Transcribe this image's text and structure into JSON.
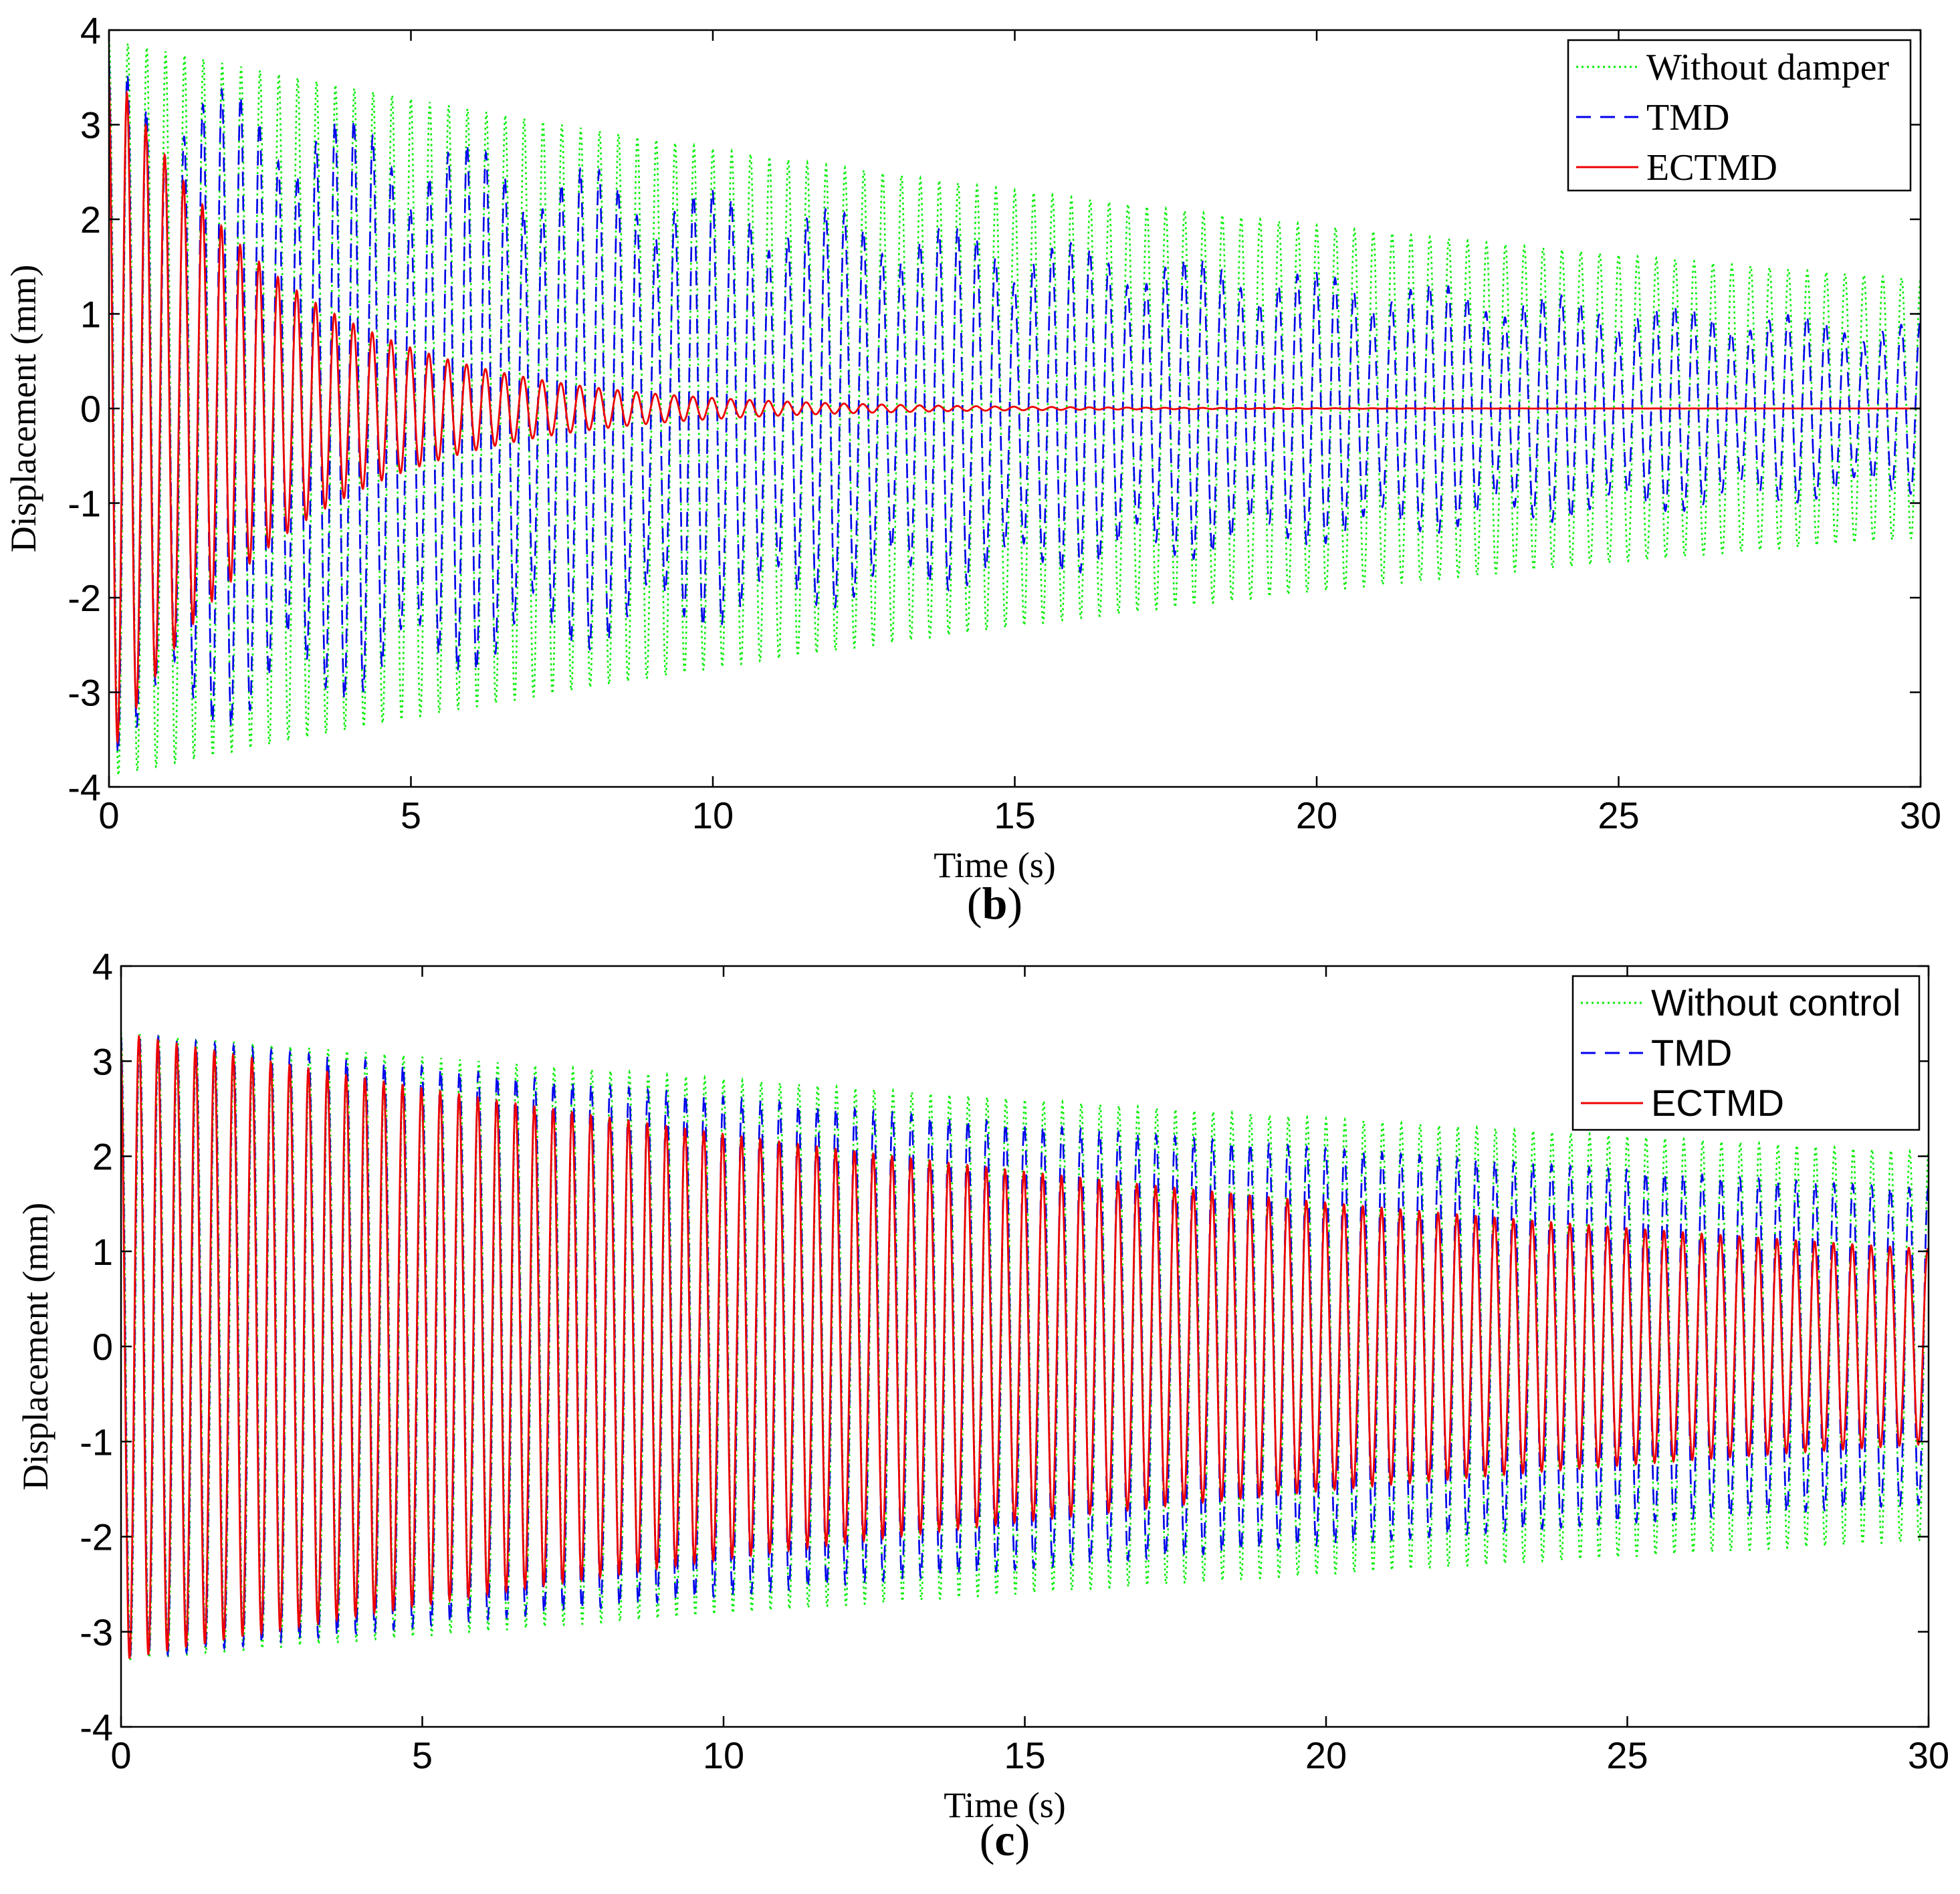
{
  "chart_data": [
    {
      "panel_label": "b",
      "type": "line",
      "title": "",
      "xlabel": "Time (s)",
      "ylabel": "Displacement (mm)",
      "xlim": [
        0,
        30
      ],
      "ylim": [
        -4,
        4
      ],
      "xticks": [
        "0",
        "5",
        "10",
        "15",
        "20",
        "25",
        "30"
      ],
      "yticks": [
        "4",
        "3",
        "2",
        "1",
        "0",
        "-1",
        "-2",
        "-3",
        "-4"
      ],
      "grid": false,
      "legend_position": "top-right",
      "series": [
        {
          "name": "Without damper",
          "color": "#00ee00",
          "style": "dotted",
          "amplitude": 3.9,
          "decay_rate": 0.035,
          "frequency_hz": 3.2,
          "envelope_samples": [
            {
              "t": 0,
              "amp": 3.9
            },
            {
              "t": 10,
              "amp": 2.8
            },
            {
              "t": 20,
              "amp": 1.9
            },
            {
              "t": 30,
              "amp": 1.4
            }
          ]
        },
        {
          "name": "TMD",
          "color": "#0000ee",
          "style": "dashed",
          "amplitude": 3.7,
          "decay_rate": 0.047,
          "beat_period_s": 2.0,
          "frequency_hz": 3.2,
          "envelope_samples": [
            {
              "t": 0,
              "amp": 3.7
            },
            {
              "t": 10,
              "amp": 2.2
            },
            {
              "t": 20,
              "amp": 1.5
            },
            {
              "t": 30,
              "amp": 1.0
            }
          ]
        },
        {
          "name": "ECTMD",
          "color": "#ee0000",
          "style": "solid",
          "amplitude": 3.7,
          "decay_rate": 0.35,
          "frequency_hz": 3.2,
          "envelope_samples": [
            {
              "t": 0,
              "amp": 3.7
            },
            {
              "t": 5,
              "amp": 0.9
            },
            {
              "t": 10,
              "amp": 0.12
            },
            {
              "t": 15,
              "amp": 0.02
            },
            {
              "t": 30,
              "amp": 0.0
            }
          ]
        }
      ]
    },
    {
      "panel_label": "c",
      "type": "line",
      "title": "",
      "xlabel": "Time (s)",
      "ylabel": "Displacement (mm)",
      "xlim": [
        0,
        30
      ],
      "ylim": [
        -4,
        4
      ],
      "xticks": [
        "0",
        "5",
        "10",
        "15",
        "20",
        "25",
        "30"
      ],
      "yticks": [
        "4",
        "3",
        "2",
        "1",
        "0",
        "-1",
        "-2",
        "-3",
        "-4"
      ],
      "grid": false,
      "legend_position": "top-right",
      "series": [
        {
          "name": "Without control",
          "color": "#00ee00",
          "style": "dotted",
          "amplitude": 3.3,
          "decay_rate": 0.016,
          "frequency_hz": 3.2,
          "envelope_samples": [
            {
              "t": 0,
              "amp": 3.3
            },
            {
              "t": 10,
              "amp": 2.8
            },
            {
              "t": 20,
              "amp": 2.4
            },
            {
              "t": 30,
              "amp": 2.0
            }
          ]
        },
        {
          "name": "TMD",
          "color": "#0000ee",
          "style": "dashed",
          "amplitude": 3.3,
          "decay_rate": 0.023,
          "frequency_hz": 3.2,
          "envelope_samples": [
            {
              "t": 0,
              "amp": 3.3
            },
            {
              "t": 10,
              "amp": 2.6
            },
            {
              "t": 20,
              "amp": 2.1
            },
            {
              "t": 30,
              "amp": 1.7
            }
          ]
        },
        {
          "name": "ECTMD",
          "color": "#ee0000",
          "style": "solid",
          "amplitude": 3.3,
          "decay_rate": 0.039,
          "frequency_hz": 3.2,
          "envelope_samples": [
            {
              "t": 0,
              "amp": 3.3
            },
            {
              "t": 10,
              "amp": 2.2
            },
            {
              "t": 20,
              "amp": 1.4
            },
            {
              "t": 30,
              "amp": 1.0
            }
          ]
        }
      ]
    }
  ]
}
